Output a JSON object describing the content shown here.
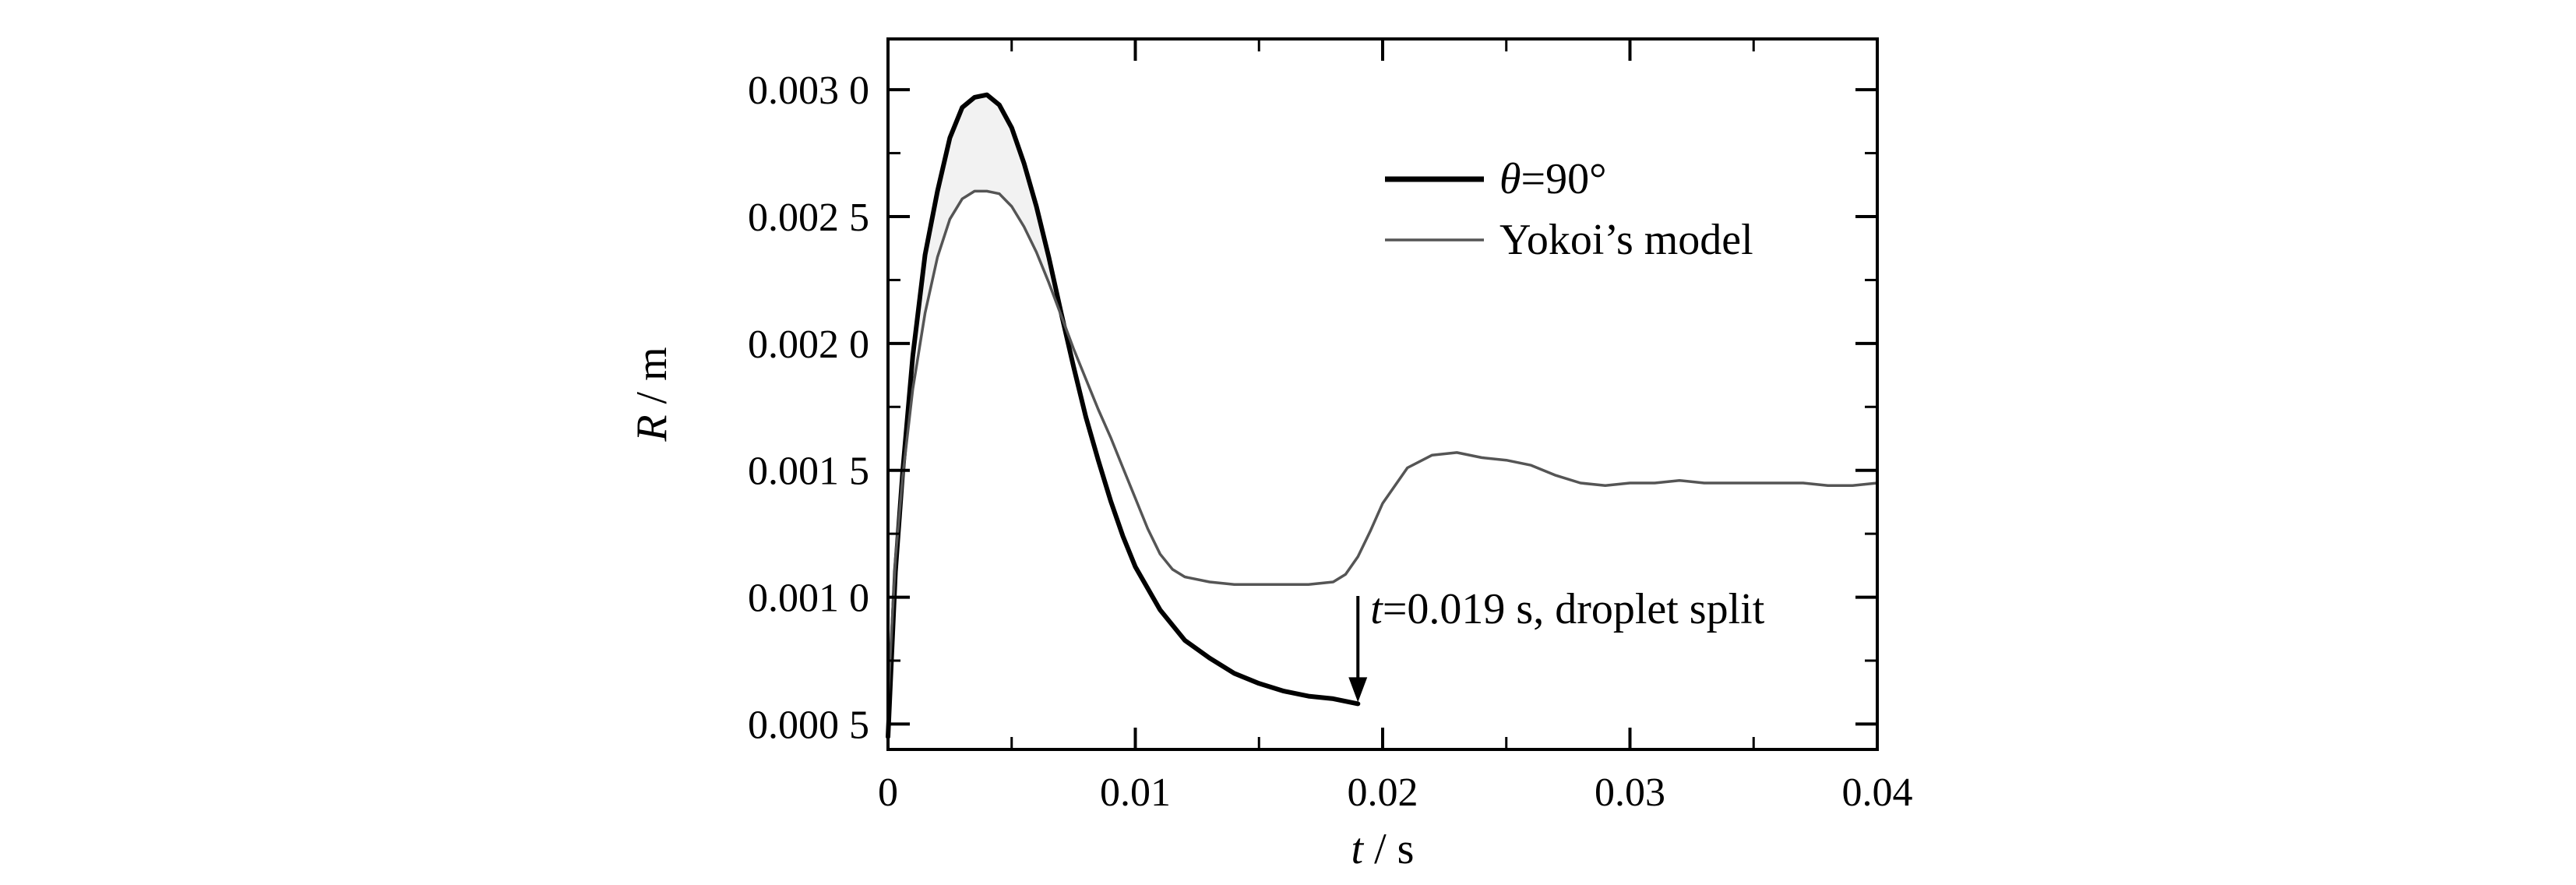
{
  "chart_data": {
    "type": "line",
    "xlabel": {
      "var": "t",
      "unit": "s"
    },
    "ylabel": {
      "var": "R",
      "unit": "m"
    },
    "xlim": [
      0,
      0.04
    ],
    "ylim": [
      0.0004,
      0.0032
    ],
    "x_ticks": [
      0,
      0.01,
      0.02,
      0.03,
      0.04
    ],
    "x_tick_labels": [
      "0",
      "0.01",
      "0.02",
      "0.03",
      "0.04"
    ],
    "y_ticks": [
      0.0005,
      0.001,
      0.0015,
      0.002,
      0.0025,
      0.003
    ],
    "y_tick_labels": [
      "0.000 5",
      "0.001 0",
      "0.001 5",
      "0.002 0",
      "0.002 5",
      "0.003 0"
    ],
    "legend_position": "top-right",
    "grid": false,
    "series": [
      {
        "key": "theta90",
        "legend_var": "θ",
        "legend_value": "=90°",
        "color": "#000000",
        "width": "thick",
        "x": [
          0,
          0.0003,
          0.0006,
          0.001,
          0.0015,
          0.002,
          0.0025,
          0.003,
          0.0035,
          0.004,
          0.0045,
          0.005,
          0.0055,
          0.006,
          0.0065,
          0.007,
          0.0075,
          0.008,
          0.0085,
          0.009,
          0.0095,
          0.01,
          0.011,
          0.012,
          0.013,
          0.014,
          0.015,
          0.016,
          0.017,
          0.018,
          0.019
        ],
        "y": [
          0.00045,
          0.0011,
          0.0015,
          0.00195,
          0.00235,
          0.0026,
          0.00281,
          0.00293,
          0.00297,
          0.00298,
          0.00294,
          0.00285,
          0.00271,
          0.00254,
          0.00234,
          0.00212,
          0.00191,
          0.00171,
          0.00154,
          0.00138,
          0.00124,
          0.00112,
          0.00095,
          0.00083,
          0.00076,
          0.0007,
          0.00066,
          0.00063,
          0.00061,
          0.0006,
          0.00058
        ]
      },
      {
        "key": "yokoi",
        "name": "Yokoi’s model",
        "color": "#555555",
        "width": "thin",
        "x": [
          0,
          0.0003,
          0.0006,
          0.001,
          0.0015,
          0.002,
          0.0025,
          0.003,
          0.0035,
          0.004,
          0.0045,
          0.005,
          0.0055,
          0.006,
          0.0065,
          0.007,
          0.0075,
          0.008,
          0.0085,
          0.009,
          0.0095,
          0.01,
          0.0105,
          0.011,
          0.0115,
          0.012,
          0.013,
          0.014,
          0.015,
          0.016,
          0.017,
          0.018,
          0.0185,
          0.019,
          0.0195,
          0.02,
          0.021,
          0.022,
          0.023,
          0.024,
          0.025,
          0.026,
          0.027,
          0.028,
          0.029,
          0.03,
          0.031,
          0.032,
          0.033,
          0.034,
          0.035,
          0.036,
          0.037,
          0.038,
          0.039,
          0.04
        ],
        "y": [
          0.0006,
          0.00115,
          0.00148,
          0.00182,
          0.00212,
          0.00234,
          0.00249,
          0.00257,
          0.0026,
          0.0026,
          0.00259,
          0.00254,
          0.00246,
          0.00236,
          0.00224,
          0.00211,
          0.00198,
          0.00186,
          0.00174,
          0.00163,
          0.00151,
          0.00139,
          0.00127,
          0.00117,
          0.00111,
          0.00108,
          0.00106,
          0.00105,
          0.00105,
          0.00105,
          0.00105,
          0.00106,
          0.00109,
          0.00116,
          0.00126,
          0.00137,
          0.00151,
          0.00156,
          0.00157,
          0.00155,
          0.00154,
          0.00152,
          0.00148,
          0.00145,
          0.00144,
          0.00145,
          0.00145,
          0.00146,
          0.00145,
          0.00145,
          0.00145,
          0.00145,
          0.00145,
          0.00144,
          0.00144,
          0.00145
        ]
      }
    ],
    "annotation": {
      "var": "t",
      "text": "=0.019 s, droplet split",
      "x": 0.019,
      "y": 0.00058
    }
  }
}
